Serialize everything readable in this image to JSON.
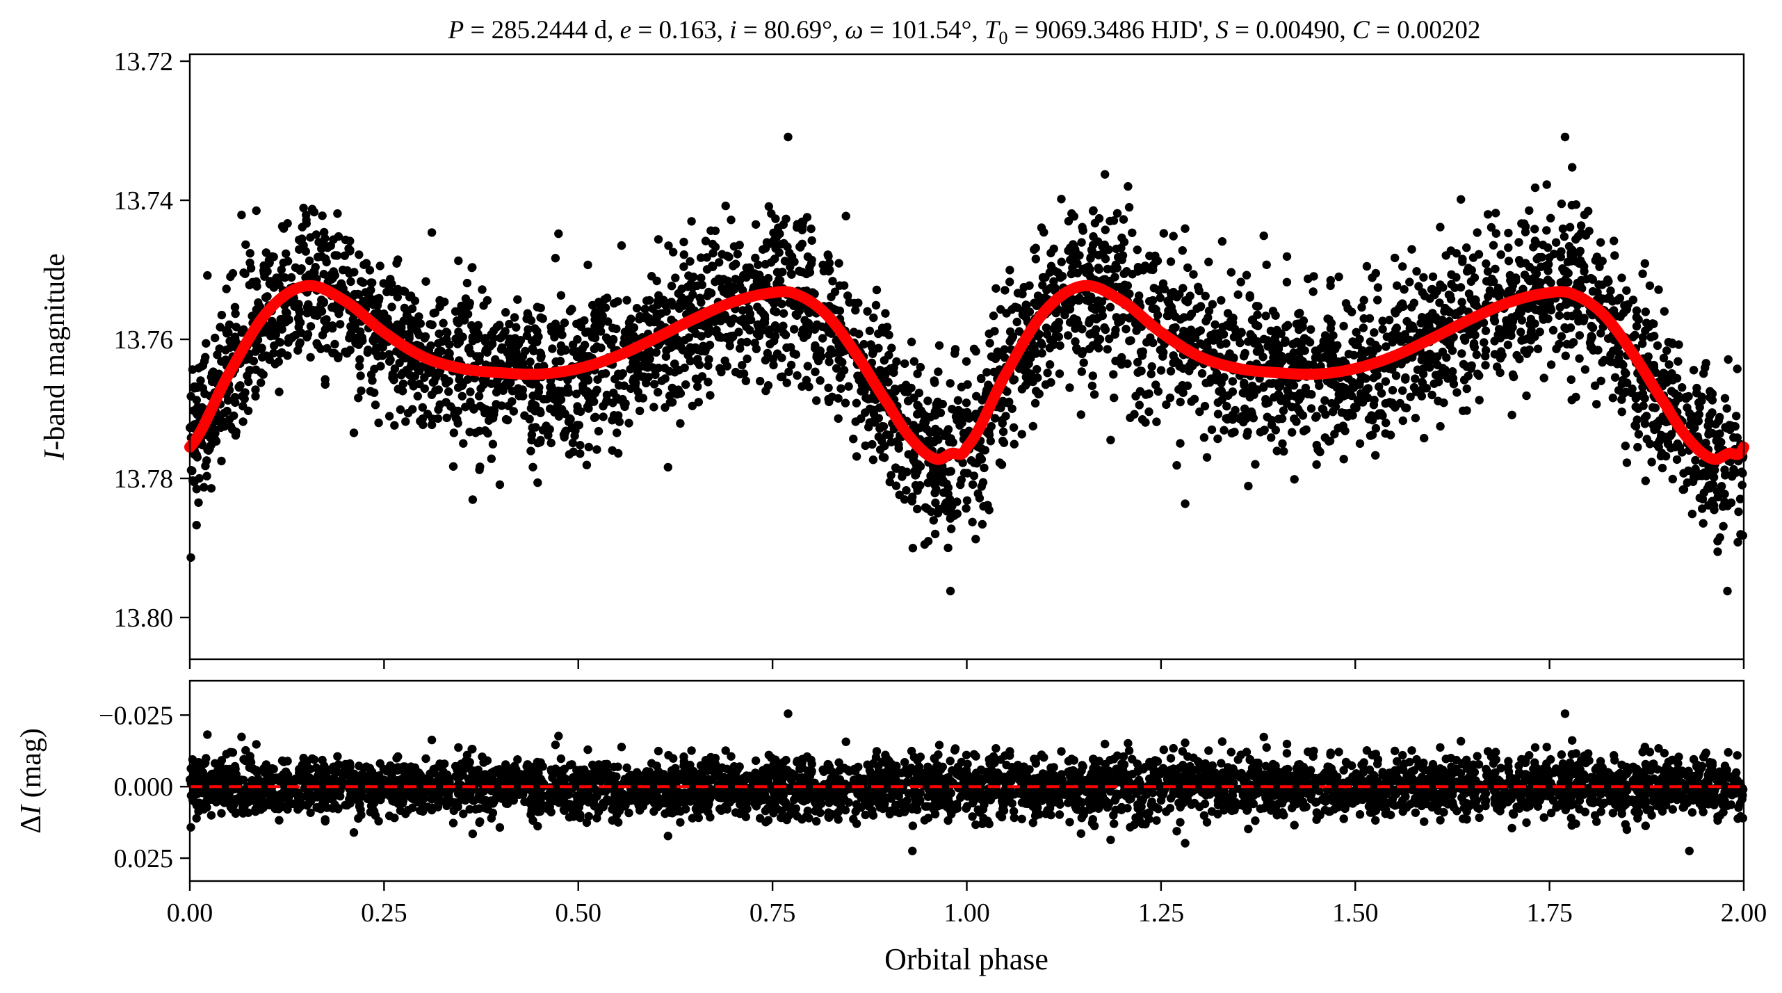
{
  "chart_data": [
    {
      "type": "scatter",
      "panel": "light-curve",
      "title": "P = 285.2444 d, e = 0.163, i = 80.69°, ω = 101.54°, T0 = 9069.3486 HJD', S = 0.00490, C = 0.00202",
      "title_parts": {
        "p_sym": "P",
        "p_val": " = 285.2444 d, ",
        "e_sym": "e",
        "e_val": " = 0.163, ",
        "i_sym": "i",
        "i_val": " = 80.69°, ",
        "w_sym": "ω",
        "w_val": " = 101.54°, ",
        "t_sym": "T",
        "t_sub": "0",
        "t_val": " = 9069.3486 HJD', ",
        "s_sym": "S",
        "s_val": " = 0.00490, ",
        "c_sym": "C",
        "c_val": " = 0.00202"
      },
      "ylabel_italic": "I",
      "ylabel_rest": "-band magnitude",
      "y_inverted": true,
      "ylim": [
        13.806,
        13.719
      ],
      "xlim": [
        0.0,
        2.0
      ],
      "yticks": [
        "13.72",
        "13.74",
        "13.76",
        "13.78",
        "13.80"
      ],
      "ytick_values": [
        13.72,
        13.74,
        13.76,
        13.78,
        13.8
      ],
      "series": [
        {
          "role": "observed",
          "marker_color": "#000000",
          "noise_mag": 0.0062,
          "outliers": [
            {
              "x": 0.77,
              "y": 13.7309
            },
            {
              "x": 1.77,
              "y": 13.7309
            },
            {
              "x": 0.979,
              "y": 13.7962
            },
            {
              "x": 1.979,
              "y": 13.7962
            }
          ]
        },
        {
          "role": "model",
          "line_color": "#ff0000",
          "x": [
            0.0,
            0.05,
            0.1,
            0.15,
            0.2,
            0.25,
            0.3,
            0.35,
            0.4,
            0.45,
            0.5,
            0.55,
            0.6,
            0.65,
            0.7,
            0.75,
            0.78,
            0.82,
            0.86,
            0.9,
            0.93,
            0.96,
            0.98,
            1.0
          ],
          "y": [
            13.7755,
            13.765,
            13.756,
            13.7523,
            13.7545,
            13.759,
            13.7625,
            13.7642,
            13.7648,
            13.765,
            13.7642,
            13.7624,
            13.7598,
            13.757,
            13.7546,
            13.7533,
            13.7535,
            13.7565,
            13.7625,
            13.7695,
            13.7745,
            13.7772,
            13.7764,
            13.7755
          ]
        }
      ]
    },
    {
      "type": "scatter",
      "panel": "residuals",
      "xlabel": "Orbital phase",
      "ylabel_prefix": "Δ",
      "ylabel_italic": "I",
      "ylabel_rest": " (mag)",
      "y_inverted": true,
      "ylim": [
        0.033,
        -0.037
      ],
      "xlim": [
        0.0,
        2.0
      ],
      "xticks": [
        "0.00",
        "0.25",
        "0.50",
        "0.75",
        "1.00",
        "1.25",
        "1.50",
        "1.75",
        "2.00"
      ],
      "xtick_values": [
        0.0,
        0.25,
        0.5,
        0.75,
        1.0,
        1.25,
        1.5,
        1.75,
        2.0
      ],
      "yticks": [
        "−0.025",
        "0.000",
        "0.025"
      ],
      "ytick_values": [
        -0.025,
        0.0,
        0.025
      ],
      "series": [
        {
          "role": "residual",
          "marker_color": "#000000",
          "noise_mag": 0.0055,
          "outliers": [
            {
              "x": 0.77,
              "y": -0.0255
            },
            {
              "x": 1.77,
              "y": -0.0255
            },
            {
              "x": 0.93,
              "y": 0.0225
            },
            {
              "x": 1.93,
              "y": 0.0225
            }
          ]
        },
        {
          "role": "zero-line",
          "line_color": "#ff0000",
          "dash": true,
          "y": 0.0
        }
      ]
    }
  ]
}
